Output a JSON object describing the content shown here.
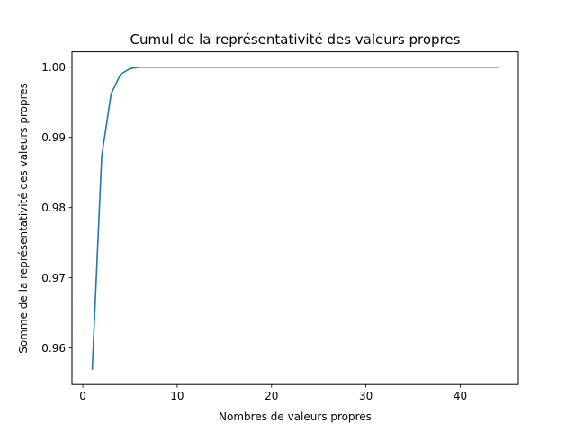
{
  "chart_data": {
    "type": "line",
    "title": "Cumul de la représentativité des valeurs propres",
    "xlabel": "Nombres de valeurs propres",
    "ylabel": "Somme de la représentativité des valeurs propres",
    "xlim": [
      -1.15,
      46.15
    ],
    "ylim": [
      0.9548,
      1.0022
    ],
    "x_ticks": [
      0,
      10,
      20,
      30,
      40
    ],
    "x_tick_labels": [
      "0",
      "10",
      "20",
      "30",
      "40"
    ],
    "y_ticks": [
      0.96,
      0.97,
      0.98,
      0.99,
      1.0
    ],
    "y_tick_labels": [
      "0.96",
      "0.97",
      "0.98",
      "0.99",
      "1.00"
    ],
    "grid": false,
    "legend": "none",
    "series": [
      {
        "color": "#1f77b4",
        "x": [
          1,
          2,
          3,
          4,
          5,
          6,
          7,
          8,
          9,
          10,
          11,
          12,
          13,
          14,
          15,
          16,
          17,
          18,
          19,
          20,
          21,
          22,
          23,
          24,
          25,
          26,
          27,
          28,
          29,
          30,
          31,
          32,
          33,
          34,
          35,
          36,
          37,
          38,
          39,
          40,
          41,
          42,
          43,
          44
        ],
        "y": [
          0.957,
          0.9873,
          0.9962,
          0.999,
          0.9998,
          1.0,
          1.0,
          1.0,
          1.0,
          1.0,
          1.0,
          1.0,
          1.0,
          1.0,
          1.0,
          1.0,
          1.0,
          1.0,
          1.0,
          1.0,
          1.0,
          1.0,
          1.0,
          1.0,
          1.0,
          1.0,
          1.0,
          1.0,
          1.0,
          1.0,
          1.0,
          1.0,
          1.0,
          1.0,
          1.0,
          1.0,
          1.0,
          1.0,
          1.0,
          1.0,
          1.0,
          1.0,
          1.0,
          1.0
        ]
      }
    ]
  }
}
